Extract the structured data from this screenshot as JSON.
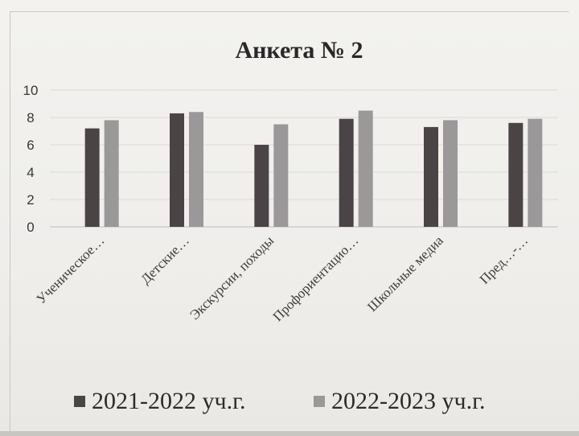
{
  "chart_data": {
    "type": "bar",
    "title": "Анкета № 2",
    "categories": [
      "Ученическое…",
      "Детские…",
      "Экскурсии, походы",
      "Профориентацио…",
      "Школьные медиа",
      "Пред…-…"
    ],
    "series": [
      {
        "name": "2021-2022 уч.г.",
        "color": "#4b4446",
        "values": [
          7.2,
          8.3,
          6.0,
          7.9,
          7.3,
          7.6
        ]
      },
      {
        "name": "2022-2023 уч.г.",
        "color": "#9a9899",
        "values": [
          7.8,
          8.4,
          7.5,
          8.5,
          7.8,
          7.9
        ]
      }
    ],
    "ylim": [
      0,
      10
    ],
    "yticks": [
      "10",
      "8",
      "6",
      "4",
      "2",
      "0"
    ],
    "grid": true,
    "legend_position": "bottom"
  }
}
